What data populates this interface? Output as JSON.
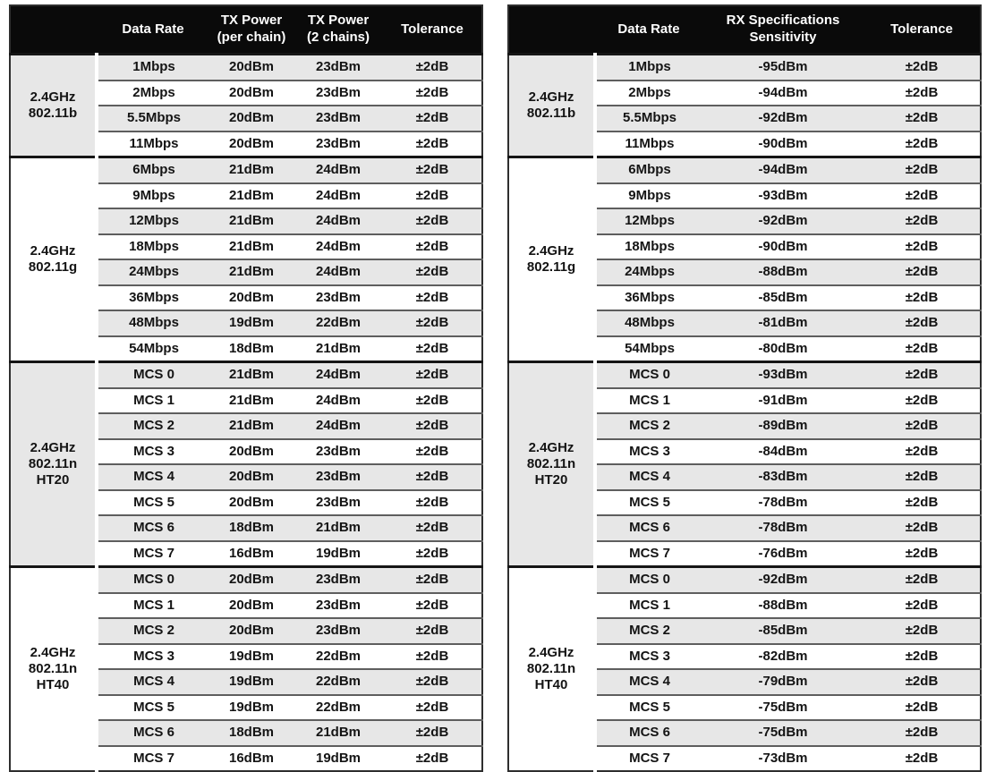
{
  "page": {
    "background": "#ffffff"
  },
  "colors": {
    "header_bg": "#0a0a0a",
    "header_text": "#ffffff",
    "stripe": "#e7e7e7",
    "row_separator": "#5e5e5e",
    "group_separator": "#151515",
    "table_border": "#2e2e2e",
    "cell_text": "#141414"
  },
  "tables": [
    {
      "key": "tx-power",
      "columns": [
        {
          "key": "data-rate",
          "lines": [
            "Data Rate"
          ]
        },
        {
          "key": "tx-power-per-chain",
          "lines": [
            "TX Power",
            "(per chain)"
          ]
        },
        {
          "key": "tx-power-2-chains",
          "lines": [
            "TX Power",
            "(2 chains)"
          ]
        },
        {
          "key": "tolerance",
          "lines": [
            "Tolerance"
          ]
        }
      ],
      "groups": [
        {
          "key": "2-4ghz-802-11b",
          "label_lines": [
            "2.4GHz",
            "802.11b"
          ],
          "shaded": true,
          "rows": [
            [
              "1Mbps",
              "20dBm",
              "23dBm",
              "±2dB"
            ],
            [
              "2Mbps",
              "20dBm",
              "23dBm",
              "±2dB"
            ],
            [
              "5.5Mbps",
              "20dBm",
              "23dBm",
              "±2dB"
            ],
            [
              "11Mbps",
              "20dBm",
              "23dBm",
              "±2dB"
            ]
          ]
        },
        {
          "key": "2-4ghz-802-11g",
          "label_lines": [
            "2.4GHz",
            "802.11g"
          ],
          "shaded": false,
          "rows": [
            [
              "6Mbps",
              "21dBm",
              "24dBm",
              "±2dB"
            ],
            [
              "9Mbps",
              "21dBm",
              "24dBm",
              "±2dB"
            ],
            [
              "12Mbps",
              "21dBm",
              "24dBm",
              "±2dB"
            ],
            [
              "18Mbps",
              "21dBm",
              "24dBm",
              "±2dB"
            ],
            [
              "24Mbps",
              "21dBm",
              "24dBm",
              "±2dB"
            ],
            [
              "36Mbps",
              "20dBm",
              "23dBm",
              "±2dB"
            ],
            [
              "48Mbps",
              "19dBm",
              "22dBm",
              "±2dB"
            ],
            [
              "54Mbps",
              "18dBm",
              "21dBm",
              "±2dB"
            ]
          ]
        },
        {
          "key": "2-4ghz-802-11n-ht20",
          "label_lines": [
            "2.4GHz",
            "802.11n",
            "HT20"
          ],
          "shaded": true,
          "rows": [
            [
              "MCS 0",
              "21dBm",
              "24dBm",
              "±2dB"
            ],
            [
              "MCS 1",
              "21dBm",
              "24dBm",
              "±2dB"
            ],
            [
              "MCS 2",
              "21dBm",
              "24dBm",
              "±2dB"
            ],
            [
              "MCS 3",
              "20dBm",
              "23dBm",
              "±2dB"
            ],
            [
              "MCS 4",
              "20dBm",
              "23dBm",
              "±2dB"
            ],
            [
              "MCS 5",
              "20dBm",
              "23dBm",
              "±2dB"
            ],
            [
              "MCS 6",
              "18dBm",
              "21dBm",
              "±2dB"
            ],
            [
              "MCS 7",
              "16dBm",
              "19dBm",
              "±2dB"
            ]
          ]
        },
        {
          "key": "2-4ghz-802-11n-ht40",
          "label_lines": [
            "2.4GHz",
            "802.11n",
            "HT40"
          ],
          "shaded": false,
          "rows": [
            [
              "MCS 0",
              "20dBm",
              "23dBm",
              "±2dB"
            ],
            [
              "MCS 1",
              "20dBm",
              "23dBm",
              "±2dB"
            ],
            [
              "MCS 2",
              "20dBm",
              "23dBm",
              "±2dB"
            ],
            [
              "MCS 3",
              "19dBm",
              "22dBm",
              "±2dB"
            ],
            [
              "MCS 4",
              "19dBm",
              "22dBm",
              "±2dB"
            ],
            [
              "MCS 5",
              "19dBm",
              "22dBm",
              "±2dB"
            ],
            [
              "MCS 6",
              "18dBm",
              "21dBm",
              "±2dB"
            ],
            [
              "MCS 7",
              "16dBm",
              "19dBm",
              "±2dB"
            ]
          ]
        }
      ]
    },
    {
      "key": "rx-sensitivity",
      "columns": [
        {
          "key": "data-rate",
          "lines": [
            "Data Rate"
          ]
        },
        {
          "key": "rx-specifications-sensitivity",
          "lines": [
            "RX Specifications",
            "Sensitivity"
          ]
        },
        {
          "key": "tolerance",
          "lines": [
            "Tolerance"
          ]
        }
      ],
      "groups": [
        {
          "key": "2-4ghz-802-11b",
          "label_lines": [
            "2.4GHz",
            "802.11b"
          ],
          "shaded": true,
          "rows": [
            [
              "1Mbps",
              "-95dBm",
              "±2dB"
            ],
            [
              "2Mbps",
              "-94dBm",
              "±2dB"
            ],
            [
              "5.5Mbps",
              "-92dBm",
              "±2dB"
            ],
            [
              "11Mbps",
              "-90dBm",
              "±2dB"
            ]
          ]
        },
        {
          "key": "2-4ghz-802-11g",
          "label_lines": [
            "2.4GHz",
            "802.11g"
          ],
          "shaded": false,
          "rows": [
            [
              "6Mbps",
              "-94dBm",
              "±2dB"
            ],
            [
              "9Mbps",
              "-93dBm",
              "±2dB"
            ],
            [
              "12Mbps",
              "-92dBm",
              "±2dB"
            ],
            [
              "18Mbps",
              "-90dBm",
              "±2dB"
            ],
            [
              "24Mbps",
              "-88dBm",
              "±2dB"
            ],
            [
              "36Mbps",
              "-85dBm",
              "±2dB"
            ],
            [
              "48Mbps",
              "-81dBm",
              "±2dB"
            ],
            [
              "54Mbps",
              "-80dBm",
              "±2dB"
            ]
          ]
        },
        {
          "key": "2-4ghz-802-11n-ht20",
          "label_lines": [
            "2.4GHz",
            "802.11n",
            "HT20"
          ],
          "shaded": true,
          "rows": [
            [
              "MCS 0",
              "-93dBm",
              "±2dB"
            ],
            [
              "MCS 1",
              "-91dBm",
              "±2dB"
            ],
            [
              "MCS 2",
              "-89dBm",
              "±2dB"
            ],
            [
              "MCS 3",
              "-84dBm",
              "±2dB"
            ],
            [
              "MCS 4",
              "-83dBm",
              "±2dB"
            ],
            [
              "MCS 5",
              "-78dBm",
              "±2dB"
            ],
            [
              "MCS 6",
              "-78dBm",
              "±2dB"
            ],
            [
              "MCS 7",
              "-76dBm",
              "±2dB"
            ]
          ]
        },
        {
          "key": "2-4ghz-802-11n-ht40",
          "label_lines": [
            "2.4GHz",
            "802.11n",
            "HT40"
          ],
          "shaded": false,
          "rows": [
            [
              "MCS 0",
              "-92dBm",
              "±2dB"
            ],
            [
              "MCS 1",
              "-88dBm",
              "±2dB"
            ],
            [
              "MCS 2",
              "-85dBm",
              "±2dB"
            ],
            [
              "MCS 3",
              "-82dBm",
              "±2dB"
            ],
            [
              "MCS 4",
              "-79dBm",
              "±2dB"
            ],
            [
              "MCS 5",
              "-75dBm",
              "±2dB"
            ],
            [
              "MCS 6",
              "-75dBm",
              "±2dB"
            ],
            [
              "MCS 7",
              "-73dBm",
              "±2dB"
            ]
          ]
        }
      ]
    }
  ]
}
